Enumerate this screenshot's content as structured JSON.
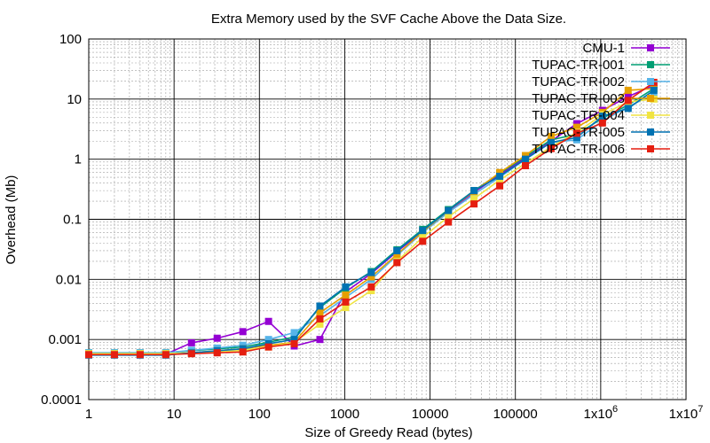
{
  "chart_data": {
    "type": "line",
    "title": "Extra Memory used by the SVF Cache Above the Data Size.",
    "xlabel": "Size of Greedy Read (bytes)",
    "ylabel": "Overhead (Mb)",
    "xscale": "log",
    "yscale": "log",
    "xlim": [
      1,
      10000000
    ],
    "ylim": [
      0.0001,
      100
    ],
    "grid": true,
    "legend_position": "top-right",
    "x_tick_labels": [
      "1",
      "10",
      "100",
      "1000",
      "10000",
      "100000",
      "1x10^6",
      "1x10^7"
    ],
    "y_tick_labels": [
      "0.0001",
      "0.001",
      "0.01",
      "0.1",
      "1",
      "10",
      "100"
    ],
    "x": [
      1,
      2,
      4,
      8,
      16,
      32,
      64,
      128,
      256,
      512,
      1024,
      2048,
      4096,
      8192,
      16384,
      32768,
      65536,
      131072,
      262144,
      524288,
      1048576,
      2097152,
      4194304
    ],
    "series": [
      {
        "name": "CMU-1",
        "color": "#9400d3",
        "marker": "square",
        "values": [
          0.00057,
          0.00057,
          0.00057,
          0.00057,
          0.00088,
          0.00105,
          0.00135,
          0.002,
          0.00078,
          0.001,
          0.0062,
          0.0125,
          0.029,
          0.063,
          0.135,
          0.28,
          0.55,
          1.05,
          2.0,
          3.9,
          6.5,
          11.0,
          17.0
        ]
      },
      {
        "name": "TUPAC-TR-001",
        "color": "#009e73",
        "marker": "square",
        "values": [
          0.0006,
          0.0006,
          0.0006,
          0.0006,
          0.00065,
          0.0007,
          0.00075,
          0.0009,
          0.0011,
          0.0034,
          0.0072,
          0.0135,
          0.031,
          0.068,
          0.145,
          0.3,
          0.58,
          1.1,
          2.1,
          2.6,
          4.8,
          8.0,
          15.0
        ]
      },
      {
        "name": "TUPAC-TR-002",
        "color": "#56b4e9",
        "marker": "square",
        "values": [
          0.0006,
          0.0006,
          0.0006,
          0.0006,
          0.00066,
          0.00072,
          0.0008,
          0.001,
          0.0013,
          0.0025,
          0.005,
          0.01,
          0.025,
          0.06,
          0.13,
          0.26,
          0.5,
          1.0,
          1.9,
          2.1,
          4.3,
          7.5,
          12.0
        ]
      },
      {
        "name": "TUPAC-TR-003",
        "color": "#e69f00",
        "marker": "square",
        "values": [
          0.00058,
          0.00058,
          0.00058,
          0.00058,
          0.0006,
          0.00065,
          0.0007,
          0.0008,
          0.0009,
          0.0028,
          0.0055,
          0.011,
          0.026,
          0.062,
          0.14,
          0.29,
          0.6,
          1.15,
          2.4,
          3.4,
          6.0,
          14.0,
          15.0
        ]
      },
      {
        "name": "TUPAC-TR-004",
        "color": "#f0e442",
        "marker": "square",
        "values": [
          0.00058,
          0.00058,
          0.00058,
          0.00058,
          0.0006,
          0.00062,
          0.00066,
          0.00075,
          0.0009,
          0.0018,
          0.0034,
          0.0065,
          0.02,
          0.05,
          0.11,
          0.22,
          0.45,
          0.85,
          1.6,
          2.8,
          5.5,
          9.0,
          10.0
        ]
      },
      {
        "name": "TUPAC-TR-005",
        "color": "#0072b2",
        "marker": "square",
        "values": [
          0.00055,
          0.00055,
          0.00055,
          0.00055,
          0.0006,
          0.00065,
          0.0007,
          0.00085,
          0.001,
          0.0036,
          0.0075,
          0.013,
          0.03,
          0.065,
          0.14,
          0.3,
          0.52,
          1.0,
          1.9,
          2.3,
          5.2,
          7.0,
          14.0
        ]
      },
      {
        "name": "TUPAC-TR-006",
        "color": "#e51e10",
        "marker": "square",
        "values": [
          0.00056,
          0.00056,
          0.00056,
          0.00056,
          0.00058,
          0.0006,
          0.00062,
          0.00075,
          0.00085,
          0.0022,
          0.0042,
          0.0075,
          0.019,
          0.043,
          0.09,
          0.18,
          0.36,
          0.78,
          1.5,
          2.7,
          4.0,
          9.5,
          19.0
        ]
      }
    ]
  }
}
